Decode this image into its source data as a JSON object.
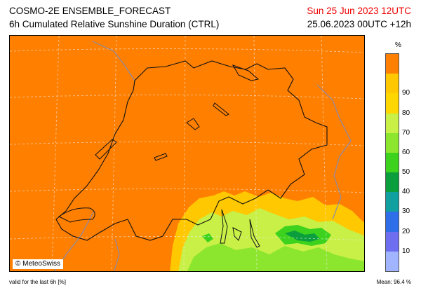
{
  "header": {
    "title_line1": "COSMO-2E ENSEMBLE_FORECAST",
    "title_line2": "6h Cumulated Relative Sunshine Duration (CTRL)",
    "date_line1": "Sun 25 Jun 2023 12UTC",
    "date_line2": "25.06.2023 00UTC +12h"
  },
  "map": {
    "copyright": "© MeteoSwiss",
    "field_color": "#ff7f00",
    "dominant_level": 90
  },
  "colorbar": {
    "unit": "%",
    "ticks": [
      "10",
      "20",
      "30",
      "40",
      "50",
      "60",
      "70",
      "80",
      "90"
    ],
    "colors": [
      "#a0b4ff",
      "#6e6ef0",
      "#2e6ee8",
      "#11a0a0",
      "#0a9e3c",
      "#3cd21e",
      "#8ce62d",
      "#c8f046",
      "#ffd700",
      "#ffc800",
      "#ff7f00"
    ]
  },
  "footer": {
    "left": "valid for the last 6h [%]",
    "right": "Mean:   96.4 %"
  }
}
